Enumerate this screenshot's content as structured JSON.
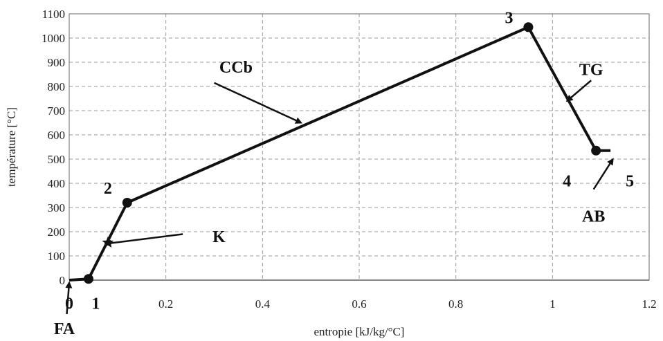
{
  "chart_data": {
    "type": "line",
    "title": "",
    "xlabel": "entropie [kJ/kg/°C]",
    "ylabel": "température [°C]",
    "xlim": [
      0,
      1.2
    ],
    "ylim": [
      0,
      1100
    ],
    "grid": true,
    "x_ticks": [
      0,
      0.2,
      0.4,
      0.6,
      0.8,
      1,
      1.2
    ],
    "x_tick_labels": [
      "0",
      "0.2",
      "0.4",
      "0.6",
      "0.8",
      "1",
      "1.2"
    ],
    "y_ticks": [
      0,
      100,
      200,
      300,
      400,
      500,
      600,
      700,
      800,
      900,
      1000,
      1100
    ],
    "y_tick_labels": [
      "0",
      "100",
      "200",
      "300",
      "400",
      "500",
      "600",
      "700",
      "800",
      "900",
      "1000",
      "1100"
    ],
    "series": [
      {
        "x": [
          0,
          0.04,
          0.12,
          0.95,
          1.09,
          1.12
        ],
        "y": [
          0,
          5,
          320,
          1045,
          535,
          535
        ]
      }
    ],
    "markers": [
      {
        "x": 0.04,
        "y": 5
      },
      {
        "x": 0.12,
        "y": 320
      },
      {
        "x": 0.95,
        "y": 1045
      },
      {
        "x": 1.09,
        "y": 535
      }
    ],
    "star_marker": {
      "x": 0.08,
      "y": 155
    },
    "annotations": [
      {
        "text": "0",
        "x": 0.0,
        "y": -95
      },
      {
        "text": "1",
        "x": 0.055,
        "y": -95
      },
      {
        "text": "FA",
        "x": -0.01,
        "y": -200,
        "arrow_to": {
          "x": 0.0,
          "y": -10
        },
        "arrow_from": {
          "x": -0.005,
          "y": -140
        }
      },
      {
        "text": "2",
        "x": 0.08,
        "y": 380
      },
      {
        "text": "K",
        "x": 0.31,
        "y": 180,
        "arrow_to": {
          "x": 0.075,
          "y": 150
        },
        "arrow_from": {
          "x": 0.235,
          "y": 190
        }
      },
      {
        "text": "CCb",
        "x": 0.345,
        "y": 880,
        "arrow_to": {
          "x": 0.48,
          "y": 650
        },
        "arrow_from": {
          "x": 0.3,
          "y": 815
        }
      },
      {
        "text": "3",
        "x": 0.91,
        "y": 1085
      },
      {
        "text": "TG",
        "x": 1.08,
        "y": 870,
        "arrow_to": {
          "x": 1.03,
          "y": 740
        },
        "arrow_from": {
          "x": 1.08,
          "y": 825
        }
      },
      {
        "text": "4",
        "x": 1.03,
        "y": 410
      },
      {
        "text": "5",
        "x": 1.16,
        "y": 410
      },
      {
        "text": "AB",
        "x": 1.085,
        "y": 265,
        "arrow_to": {
          "x": 1.125,
          "y": 500
        },
        "arrow_from": {
          "x": 1.085,
          "y": 375
        }
      }
    ]
  }
}
